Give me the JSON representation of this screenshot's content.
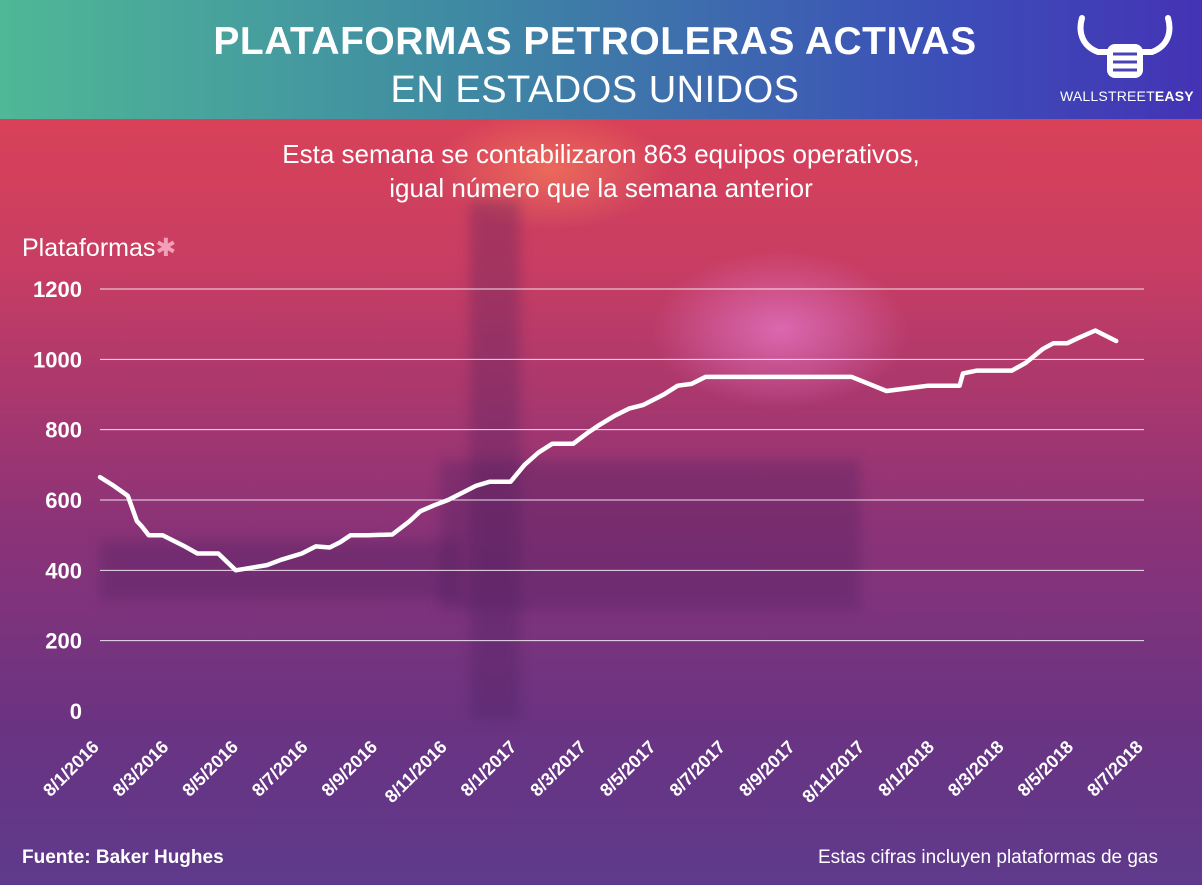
{
  "header": {
    "title_line1": "PLATAFORMAS PETROLERAS ACTIVAS",
    "title_line2": "EN ESTADOS UNIDOS",
    "logo_text_light": "WALLSTREET",
    "logo_text_bold": "EASY",
    "logo_icon": "bull-fist-icon"
  },
  "subtitle": {
    "line1": "Esta semana se contabilizaron 863 equipos operativos,",
    "line2": "igual número que la semana anterior"
  },
  "footer": {
    "source": "Fuente: Baker Hughes",
    "note": "Estas cifras incluyen plataformas de gas"
  },
  "colors": {
    "line": "#ffffff",
    "gridline": "#ffffff",
    "asterisk": "#f2a0b8"
  },
  "chart_data": {
    "type": "line",
    "title": "PLATAFORMAS PETROLERAS ACTIVAS EN ESTADOS UNIDOS",
    "ylabel": "Plataformas",
    "ylabel_marker": "✱",
    "xlabel": "",
    "ylim": [
      0,
      1200
    ],
    "yticks": [
      0,
      200,
      400,
      600,
      800,
      1000,
      1200
    ],
    "grid": true,
    "legend": "none",
    "x_tick_labels": [
      "8/1/2016",
      "8/3/2016",
      "8/5/2016",
      "8/7/2016",
      "8/9/2016",
      "8/11/2016",
      "8/1/2017",
      "8/3/2017",
      "8/5/2017",
      "8/7/2017",
      "8/9/2017",
      "8/11/2017",
      "8/1/2018",
      "8/3/2018",
      "8/5/2018",
      "8/7/2018"
    ],
    "series": [
      {
        "x": [
          0.0,
          0.2,
          0.4,
          0.53,
          0.6,
          0.7,
          0.9,
          1.2,
          1.4,
          1.7,
          1.95,
          2.4,
          2.6,
          2.9,
          3.1,
          3.3,
          3.45,
          3.6,
          3.85,
          4.2,
          4.45,
          4.6,
          4.8,
          5.0,
          5.2,
          5.4,
          5.6,
          5.9,
          6.1,
          6.3,
          6.5,
          6.8,
          7.0,
          7.15,
          7.4,
          7.6,
          7.8,
          8.1,
          8.3,
          8.5,
          8.7,
          9.0,
          9.3,
          9.6,
          10.0,
          10.4,
          10.8,
          11.3,
          11.9,
          12.35,
          12.4,
          12.6,
          12.9,
          13.1,
          13.3,
          13.55,
          13.7,
          13.9,
          14.05,
          14.3,
          14.5,
          14.6
        ],
        "y": [
          665,
          640,
          612,
          540,
          525,
          500,
          500,
          470,
          448,
          448,
          400,
          415,
          430,
          448,
          468,
          465,
          480,
          500,
          500,
          502,
          540,
          568,
          585,
          600,
          620,
          640,
          652,
          652,
          700,
          735,
          760,
          760,
          790,
          810,
          840,
          860,
          870,
          900,
          925,
          930,
          950,
          950,
          950,
          950,
          950,
          950,
          950,
          910,
          925,
          925,
          960,
          968,
          968,
          968,
          990,
          1030,
          1046,
          1046,
          1060,
          1082,
          1062,
          1052
        ]
      }
    ]
  }
}
